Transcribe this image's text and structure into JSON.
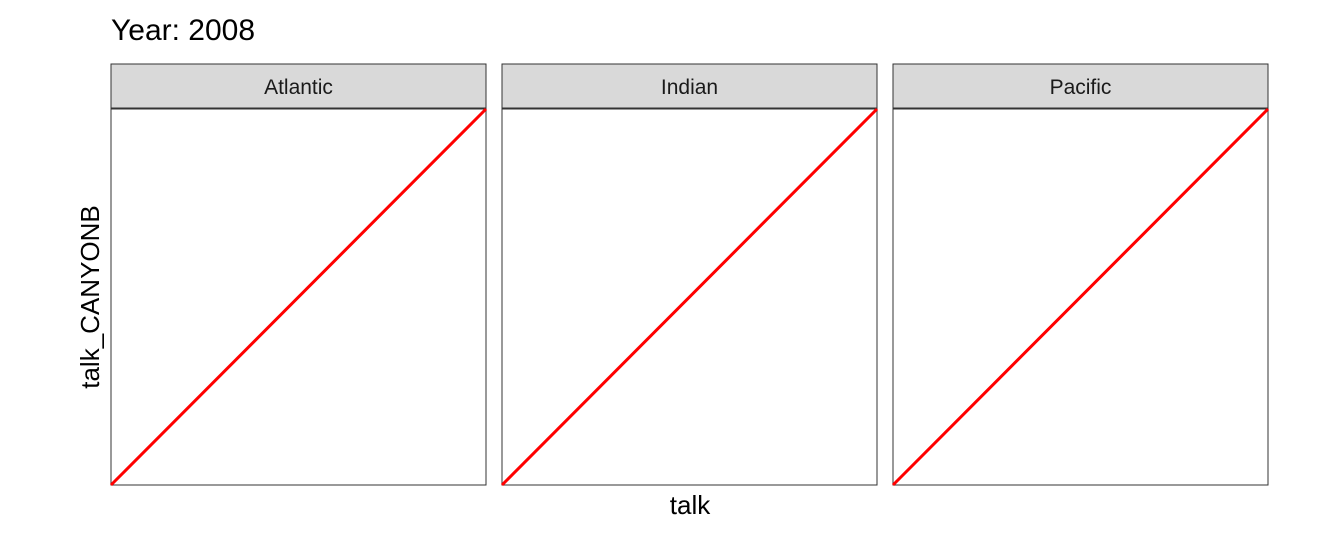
{
  "chart_data": {
    "type": "line",
    "title": "Year: 2008",
    "xlabel": "talk",
    "ylabel": "talk_CANYONB",
    "facets": [
      "Atlantic",
      "Indian",
      "Pacific"
    ],
    "series": [
      {
        "color": "#ff0000",
        "lines": [
          {
            "facet": "Atlantic",
            "x": [
              0,
              1
            ],
            "y": [
              0,
              1
            ]
          },
          {
            "facet": "Indian",
            "x": [
              0,
              1
            ],
            "y": [
              0,
              1
            ]
          },
          {
            "facet": "Pacific",
            "x": [
              0,
              1
            ],
            "y": [
              0,
              1
            ]
          }
        ]
      }
    ],
    "grid": false,
    "panel_border_color": "#333333",
    "strip_fill_color": "#d9d9d9",
    "line_color": "#ff0000"
  }
}
